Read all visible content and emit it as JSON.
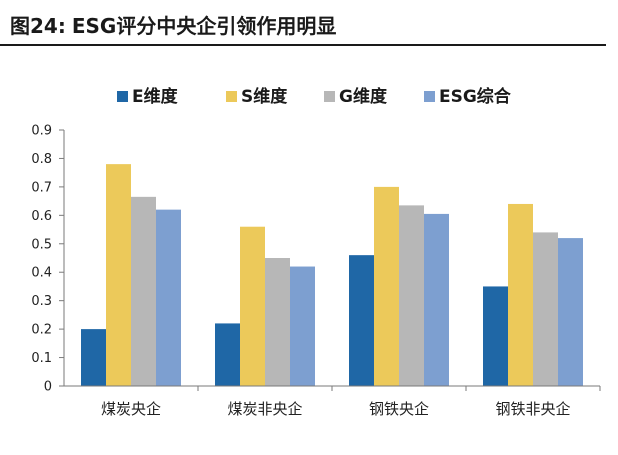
{
  "figure": {
    "number": "图24:",
    "title": "ESG评分中央企引领作用明显"
  },
  "chart_data": {
    "type": "bar",
    "categories": [
      "煤炭央企",
      "煤炭非央企",
      "钢铁央企",
      "钢铁非央企"
    ],
    "series": [
      {
        "name": "E维度",
        "color": "#1f67a6",
        "values": [
          0.2,
          0.22,
          0.46,
          0.35
        ]
      },
      {
        "name": "S维度",
        "color": "#ecc95a",
        "values": [
          0.78,
          0.56,
          0.7,
          0.64
        ]
      },
      {
        "name": "G维度",
        "color": "#b7b7b7",
        "values": [
          0.665,
          0.45,
          0.635,
          0.54
        ]
      },
      {
        "name": "ESG综合",
        "color": "#7d9fd0",
        "values": [
          0.62,
          0.42,
          0.605,
          0.52
        ]
      }
    ],
    "y_ticks": [
      "0",
      "0.1",
      "0.2",
      "0.3",
      "0.4",
      "0.5",
      "0.6",
      "0.7",
      "0.8",
      "0.9"
    ],
    "ylim": [
      0,
      0.9
    ],
    "grid": false,
    "legend_position": "top-center",
    "xlabel": "",
    "ylabel": ""
  }
}
